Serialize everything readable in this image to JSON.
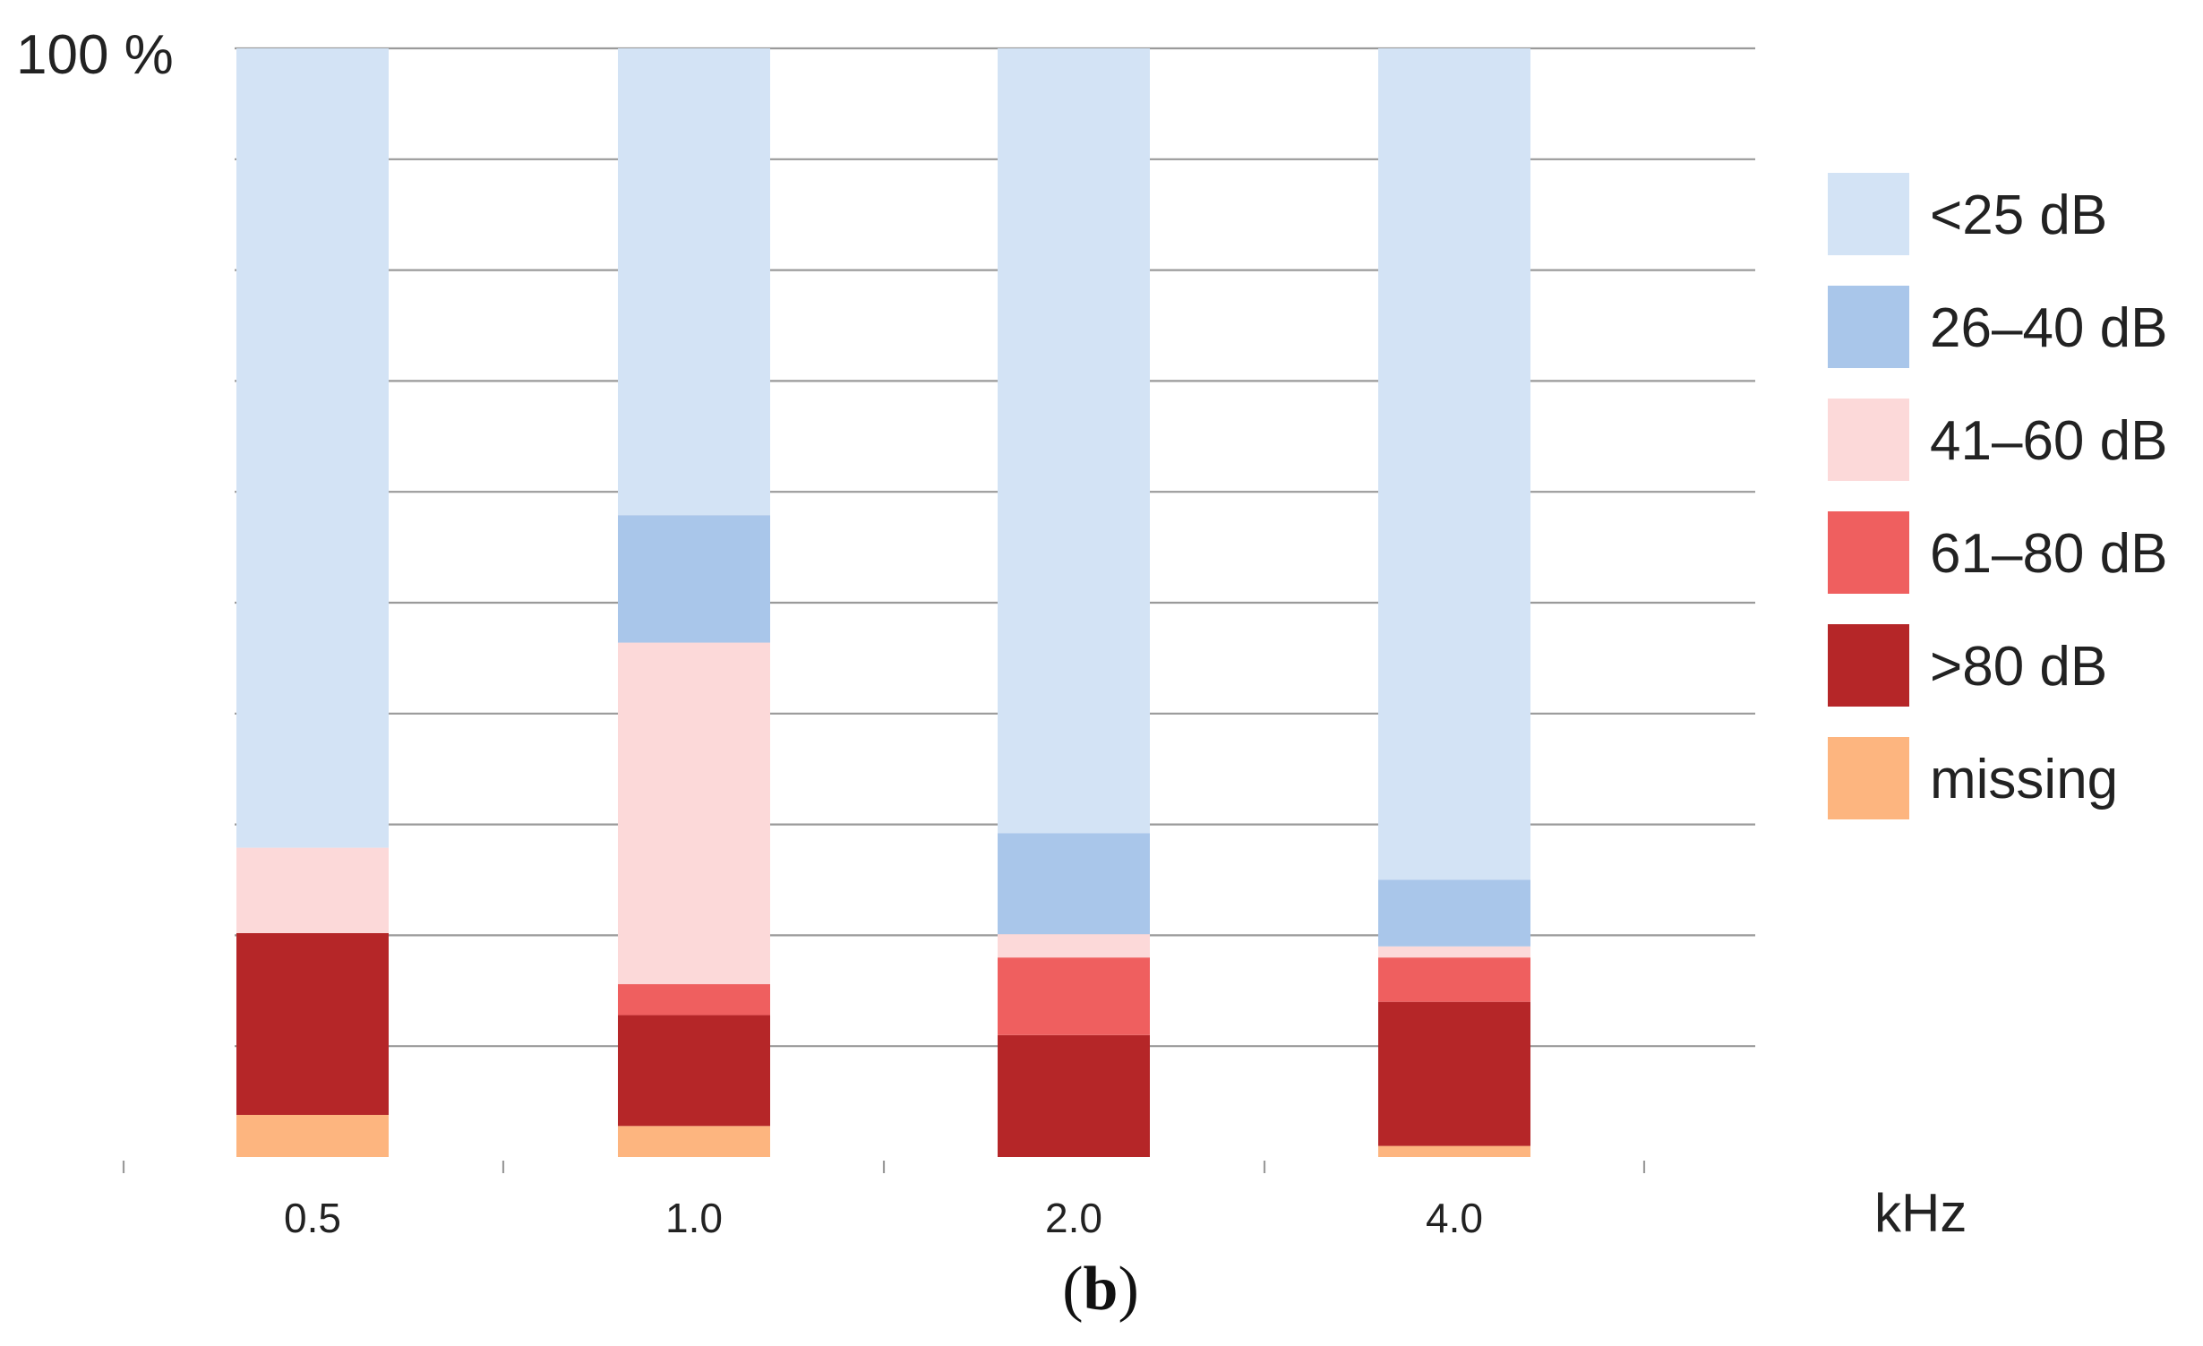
{
  "chart_data": {
    "type": "bar",
    "stacked": true,
    "categories": [
      "0.5",
      "1.0",
      "2.0",
      "4.0"
    ],
    "x_unit_label": "kHz",
    "y_top_label": "100 %",
    "panel_label": "b",
    "ylim": [
      0,
      100
    ],
    "y_gridline_step": 10,
    "grid": true,
    "legend_position": "right",
    "series": [
      {
        "name": "missing",
        "color": "#fdb57f",
        "values": [
          3.8,
          2.8,
          0,
          1.0
        ]
      },
      {
        "name": ">80 dB",
        "color": "#b52628",
        "values": [
          16.4,
          10.0,
          11.0,
          13.0
        ]
      },
      {
        "name": "61–80 dB",
        "color": "#ef5f5f",
        "values": [
          0,
          2.8,
          7.0,
          4.0
        ]
      },
      {
        "name": "41–60 dB",
        "color": "#fcd9d9",
        "values": [
          7.7,
          30.8,
          2.1,
          1.0
        ]
      },
      {
        "name": "26–40 dB",
        "color": "#a9c6ea",
        "values": [
          0,
          11.5,
          9.1,
          6.0
        ]
      },
      {
        "name": "<25 dB",
        "color": "#d3e3f5",
        "values": [
          72.1,
          42.1,
          70.8,
          75.0
        ]
      }
    ],
    "legend_order": [
      "<25 dB",
      "26–40 dB",
      "41–60 dB",
      "61–80 dB",
      ">80 dB",
      "missing"
    ]
  }
}
